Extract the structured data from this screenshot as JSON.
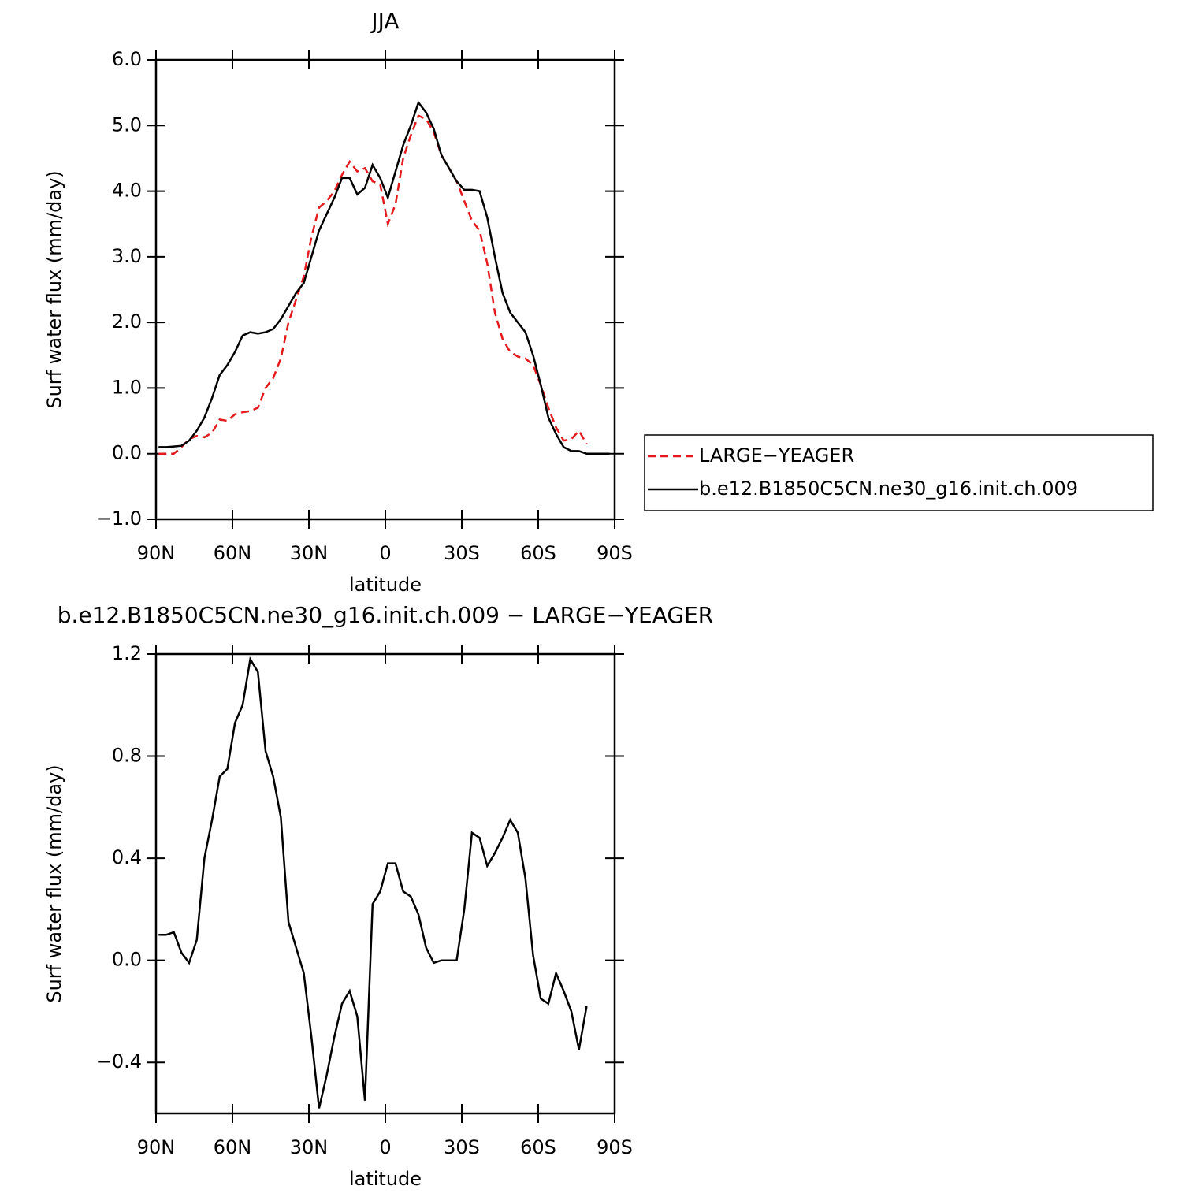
{
  "chart_data": [
    {
      "type": "line",
      "title": "JJA",
      "xlabel": "latitude",
      "ylabel": "Surf water flux (mm/day)",
      "x": [
        89,
        86,
        83,
        80,
        77,
        74,
        71,
        68,
        65,
        62,
        59,
        56,
        53,
        50,
        47,
        44,
        41,
        38,
        35,
        32,
        29,
        26,
        23,
        20,
        17,
        14,
        11,
        8,
        5,
        2,
        -1,
        -4,
        -7,
        -10,
        -13,
        -16,
        -19,
        -22,
        -25,
        -28,
        -31,
        -34,
        -37,
        -40,
        -43,
        -46,
        -49,
        -52,
        -55,
        -58,
        -61,
        -64,
        -67,
        -70,
        -73,
        -76,
        -79,
        -82,
        -85,
        -88
      ],
      "series": [
        {
          "name": "LARGE−YEAGER",
          "color": "#e41a1c",
          "linestyle": "dashed",
          "values": [
            0,
            0,
            0,
            0.1,
            0.22,
            0.27,
            0.25,
            0.32,
            0.52,
            0.5,
            0.6,
            0.63,
            0.65,
            0.7,
            1.0,
            1.15,
            1.45,
            2.0,
            2.35,
            2.7,
            3.3,
            3.75,
            3.85,
            4.0,
            4.25,
            4.45,
            4.3,
            4.35,
            4.15,
            4.1,
            3.5,
            3.8,
            4.5,
            4.85,
            5.15,
            5.1,
            4.9,
            4.55,
            4.35,
            4.15,
            3.85,
            3.55,
            3.4,
            2.9,
            2.15,
            1.75,
            1.55,
            1.48,
            1.45,
            1.35,
            1.05,
            0.7,
            0.4,
            0.2,
            0.22,
            0.35,
            0.15,
            null,
            null,
            null
          ]
        },
        {
          "name": "b.e12.B1850C5CN.ne30_g16.init.ch.009",
          "color": "#000000",
          "linestyle": "solid",
          "values": [
            0.1,
            0.1,
            0.11,
            0.12,
            0.2,
            0.35,
            0.55,
            0.85,
            1.2,
            1.35,
            1.55,
            1.8,
            1.85,
            1.83,
            1.85,
            1.9,
            2.05,
            2.25,
            2.45,
            2.6,
            3.0,
            3.4,
            3.65,
            3.9,
            4.2,
            4.2,
            3.95,
            4.05,
            4.4,
            4.2,
            3.9,
            4.3,
            4.7,
            5.0,
            5.35,
            5.2,
            4.95,
            4.55,
            4.35,
            4.15,
            4.02,
            4.02,
            4.0,
            3.6,
            3.0,
            2.45,
            2.15,
            2.0,
            1.85,
            1.5,
            1.05,
            0.55,
            0.3,
            0.1,
            0.04,
            0.04,
            0,
            0,
            0,
            0
          ]
        }
      ],
      "xlim": [
        90,
        -90
      ],
      "xticks": [
        {
          "value": 90,
          "label": "90N"
        },
        {
          "value": 60,
          "label": "60N"
        },
        {
          "value": 30,
          "label": "30N"
        },
        0,
        {
          "value": -30,
          "label": "30S"
        },
        {
          "value": -60,
          "label": "60S"
        },
        {
          "value": -90,
          "label": "90S"
        }
      ],
      "ylim": [
        -1,
        6
      ],
      "yticks": [
        {
          "value": 6,
          "label": "6.0"
        },
        {
          "value": 5,
          "label": "5.0"
        },
        {
          "value": 4,
          "label": "4.0"
        },
        {
          "value": 3,
          "label": "3.0"
        },
        {
          "value": 2,
          "label": "2.0"
        },
        {
          "value": 1,
          "label": "1.0"
        },
        {
          "value": 0,
          "label": "0.0"
        },
        {
          "value": -1,
          "label": "−1.0"
        }
      ],
      "legend": "outside right"
    },
    {
      "type": "line",
      "title": "b.e12.B1850C5CN.ne30_g16.init.ch.009 − LARGE−YEAGER",
      "xlabel": "latitude",
      "ylabel": "Surf water flux (mm/day)",
      "x": [
        89,
        86,
        83,
        80,
        77,
        74,
        71,
        68,
        65,
        62,
        59,
        56,
        53,
        50,
        47,
        44,
        41,
        38,
        35,
        32,
        29,
        26,
        23,
        20,
        17,
        14,
        11,
        8,
        5,
        2,
        -1,
        -4,
        -7,
        -10,
        -13,
        -16,
        -19,
        -22,
        -25,
        -28,
        -31,
        -34,
        -37,
        -40,
        -43,
        -46,
        -49,
        -52,
        -55,
        -58,
        -61,
        -64,
        -67,
        -70,
        -73,
        -76,
        -79
      ],
      "series": [
        {
          "color": "#000000",
          "linestyle": "solid",
          "values": [
            0.1,
            0.1,
            0.11,
            0.03,
            -0.01,
            0.08,
            0.4,
            0.55,
            0.72,
            0.75,
            0.93,
            1.0,
            1.18,
            1.13,
            0.82,
            0.72,
            0.56,
            0.15,
            0.05,
            -0.05,
            -0.3,
            -0.58,
            -0.45,
            -0.3,
            -0.17,
            -0.12,
            -0.22,
            -0.55,
            0.22,
            0.27,
            0.38,
            0.38,
            0.27,
            0.25,
            0.18,
            0.05,
            -0.01,
            0,
            0,
            0,
            0.2,
            0.5,
            0.48,
            0.37,
            0.42,
            0.48,
            0.55,
            0.5,
            0.32,
            0.02,
            -0.15,
            -0.17,
            -0.05,
            -0.12,
            -0.2,
            -0.35,
            -0.18
          ]
        }
      ],
      "xlim": [
        90,
        -90
      ],
      "xticks": [
        {
          "value": 90,
          "label": "90N"
        },
        {
          "value": 60,
          "label": "60N"
        },
        {
          "value": 30,
          "label": "30N"
        },
        0,
        {
          "value": -30,
          "label": "30S"
        },
        {
          "value": -60,
          "label": "60S"
        },
        {
          "value": -90,
          "label": "90S"
        }
      ],
      "ylim": [
        -0.6,
        1.2
      ],
      "yticks": [
        {
          "value": 1.2,
          "label": "1.2"
        },
        {
          "value": 0.8,
          "label": "0.8"
        },
        {
          "value": 0.4,
          "label": "0.4"
        },
        {
          "value": 0,
          "label": "0.0"
        },
        {
          "value": -0.4,
          "label": "−0.4"
        }
      ]
    }
  ]
}
